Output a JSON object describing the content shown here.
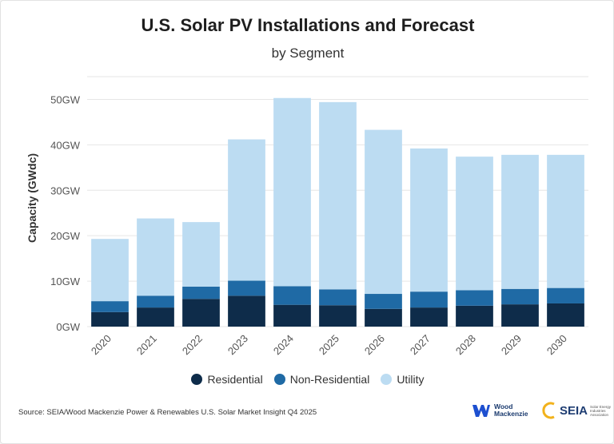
{
  "colors": {
    "residential": "#0e2c4a",
    "non_residential": "#1f6aa5",
    "utility": "#bcdcf2"
  },
  "chart_data": {
    "type": "bar",
    "stacked": true,
    "title": "U.S. Solar PV Installations and Forecast",
    "subtitle": "by Segment",
    "xlabel": "",
    "ylabel": "Capacity (GWdc)",
    "ylim": [
      0,
      55
    ],
    "yticks": [
      0,
      10,
      20,
      30,
      40,
      50
    ],
    "ytick_labels": [
      "0GW",
      "10GW",
      "20GW",
      "30GW",
      "40GW",
      "50GW"
    ],
    "grid": true,
    "legend_position": "bottom",
    "categories": [
      "2020",
      "2021",
      "2022",
      "2023",
      "2024",
      "2025",
      "2026",
      "2027",
      "2028",
      "2029",
      "2030"
    ],
    "series": [
      {
        "name": "Residential",
        "values": [
          3.2,
          4.2,
          6.1,
          6.8,
          4.8,
          4.7,
          3.9,
          4.2,
          4.6,
          4.9,
          5.1
        ]
      },
      {
        "name": "Non-Residential",
        "values": [
          2.4,
          2.6,
          2.7,
          3.3,
          4.1,
          3.5,
          3.3,
          3.5,
          3.4,
          3.4,
          3.4
        ]
      },
      {
        "name": "Utility",
        "values": [
          13.7,
          17.0,
          14.2,
          31.1,
          41.4,
          41.2,
          36.1,
          31.5,
          29.4,
          29.5,
          29.3
        ]
      }
    ]
  },
  "footer": {
    "source": "Source: SEIA/Wood Mackenzie Power & Renewables U.S. Solar Market Insight Q4 2025",
    "logo_wm": "Wood Mackenzie",
    "logo_wm_line1": "Wood",
    "logo_wm_line2": "Mackenzie",
    "logo_seia": "SEIA",
    "logo_seia_small": "Solar Energy Industries Association"
  }
}
